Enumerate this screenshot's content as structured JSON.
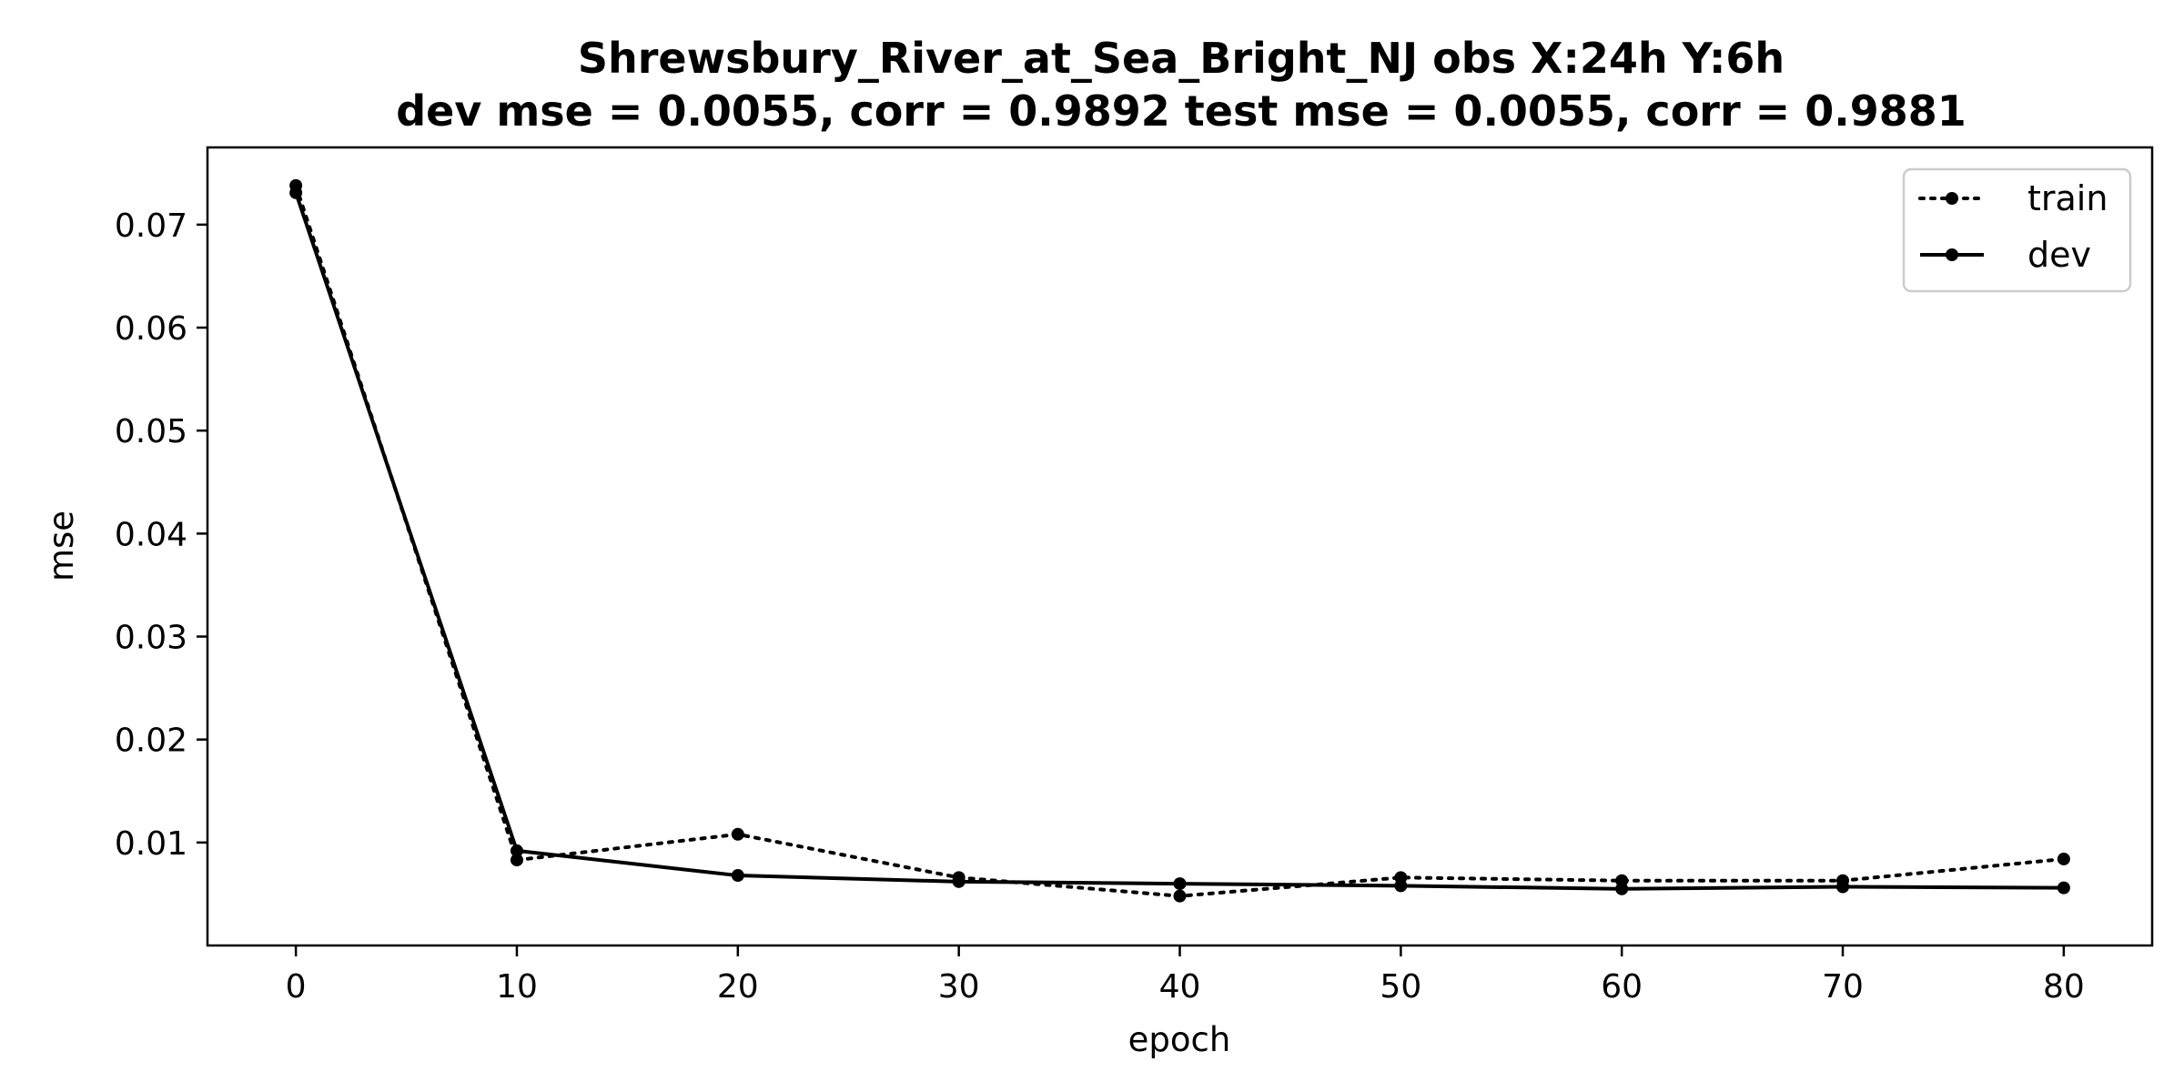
{
  "chart_data": {
    "type": "line",
    "title": "Shrewsbury_River_at_Sea_Bright_NJ   obs   X:24h   Y:6h",
    "subtitle": "dev mse = 0.0055, corr = 0.9892   test mse = 0.0055, corr = 0.9881",
    "xlabel": "epoch",
    "ylabel": "mse",
    "xlim": [
      -4,
      84
    ],
    "ylim": [
      0.0,
      0.0775
    ],
    "xticks": [
      0,
      10,
      20,
      30,
      40,
      50,
      60,
      70,
      80
    ],
    "yticks": [
      0.01,
      0.02,
      0.03,
      0.04,
      0.05,
      0.06,
      0.07
    ],
    "grid": false,
    "legend_position": "top-right",
    "x": [
      0,
      10,
      20,
      30,
      40,
      50,
      60,
      70,
      80
    ],
    "series": [
      {
        "name": "train",
        "style": "dotted",
        "color": "#000000",
        "values": [
          0.0738,
          0.0083,
          0.0108,
          0.0066,
          0.0048,
          0.0066,
          0.0063,
          0.0063,
          0.0084
        ]
      },
      {
        "name": "dev",
        "style": "solid",
        "color": "#000000",
        "values": [
          0.0731,
          0.0092,
          0.0068,
          0.0062,
          0.006,
          0.0058,
          0.0055,
          0.0057,
          0.0056
        ]
      }
    ]
  }
}
